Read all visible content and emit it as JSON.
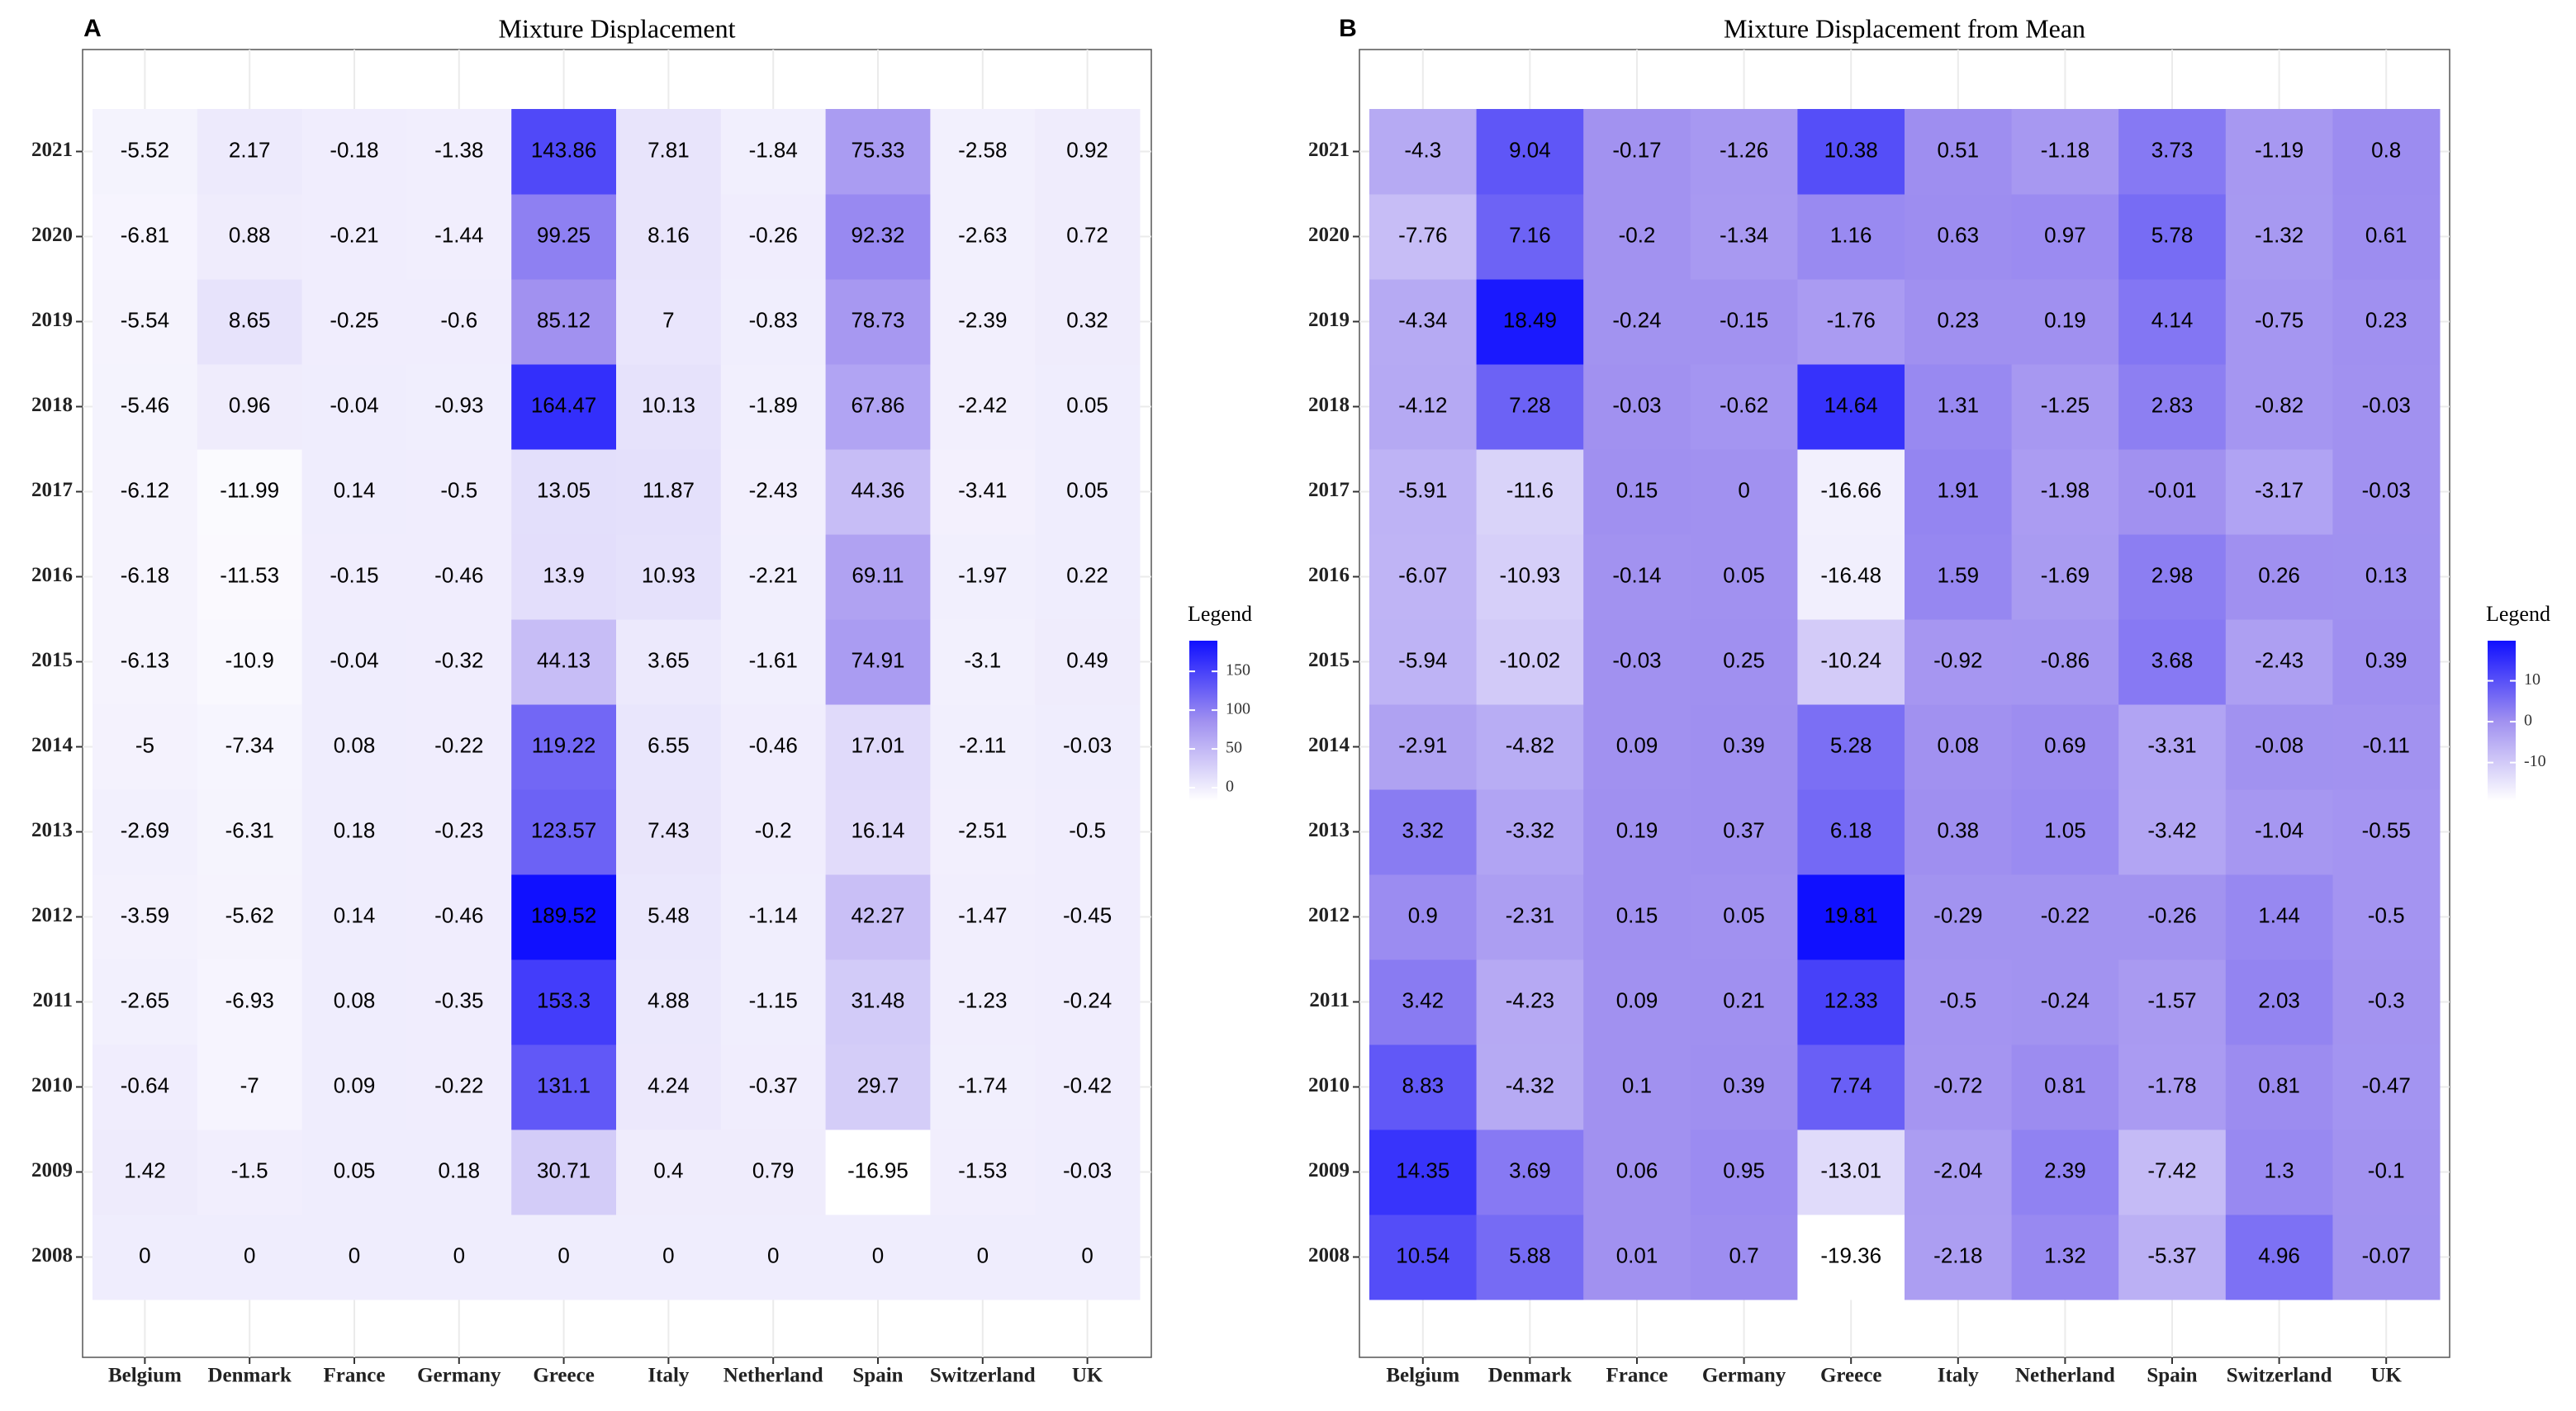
{
  "chart_data": [
    {
      "type": "heatmap",
      "panel_label": "A",
      "title": "Mixture Displacement",
      "x_categories": [
        "Belgium",
        "Denmark",
        "France",
        "Germany",
        "Greece",
        "Italy",
        "Netherland",
        "Spain",
        "Switzerland",
        "UK"
      ],
      "y_categories": [
        "2008",
        "2009",
        "2010",
        "2011",
        "2012",
        "2013",
        "2014",
        "2015",
        "2016",
        "2017",
        "2018",
        "2019",
        "2020",
        "2021"
      ],
      "values": [
        [
          0,
          0,
          0,
          0,
          0,
          0,
          0,
          0,
          0,
          0
        ],
        [
          1.42,
          -1.5,
          0.05,
          0.18,
          30.71,
          0.4,
          0.79,
          -16.95,
          -1.53,
          -0.03
        ],
        [
          -0.64,
          -7,
          0.09,
          -0.22,
          131.1,
          4.24,
          -0.37,
          29.7,
          -1.74,
          -0.42
        ],
        [
          -2.65,
          -6.93,
          0.08,
          -0.35,
          153.3,
          4.88,
          -1.15,
          31.48,
          -1.23,
          -0.24
        ],
        [
          -3.59,
          -5.62,
          0.14,
          -0.46,
          189.52,
          5.48,
          -1.14,
          42.27,
          -1.47,
          -0.45
        ],
        [
          -2.69,
          -6.31,
          0.18,
          -0.23,
          123.57,
          7.43,
          -0.2,
          16.14,
          -2.51,
          -0.5
        ],
        [
          -5,
          -7.34,
          0.08,
          -0.22,
          119.22,
          6.55,
          -0.46,
          17.01,
          -2.11,
          -0.03
        ],
        [
          -6.13,
          -10.9,
          -0.04,
          -0.32,
          44.13,
          3.65,
          -1.61,
          74.91,
          -3.1,
          0.49
        ],
        [
          -6.18,
          -11.53,
          -0.15,
          -0.46,
          13.9,
          10.93,
          -2.21,
          69.11,
          -1.97,
          0.22
        ],
        [
          -6.12,
          -11.99,
          0.14,
          -0.5,
          13.05,
          11.87,
          -2.43,
          44.36,
          -3.41,
          0.05
        ],
        [
          -5.46,
          0.96,
          -0.04,
          -0.93,
          164.47,
          10.13,
          -1.89,
          67.86,
          -2.42,
          0.05
        ],
        [
          -5.54,
          8.65,
          -0.25,
          -0.6,
          85.12,
          7,
          -0.83,
          78.73,
          -2.39,
          0.32
        ],
        [
          -6.81,
          0.88,
          -0.21,
          -1.44,
          99.25,
          8.16,
          -0.26,
          92.32,
          -2.63,
          0.72
        ],
        [
          -5.52,
          2.17,
          -0.18,
          -1.38,
          143.86,
          7.81,
          -1.84,
          75.33,
          -2.58,
          0.92
        ]
      ],
      "legend_title": "Legend",
      "clim": [
        -16.95,
        189.52
      ],
      "cticks": [
        0,
        50,
        100,
        150
      ],
      "colors": [
        "#ffffff",
        "#a090f0",
        "#1010ff"
      ]
    },
    {
      "type": "heatmap",
      "panel_label": "B",
      "title": "Mixture Displacement from Mean",
      "x_categories": [
        "Belgium",
        "Denmark",
        "France",
        "Germany",
        "Greece",
        "Italy",
        "Netherland",
        "Spain",
        "Switzerland",
        "UK"
      ],
      "y_categories": [
        "2008",
        "2009",
        "2010",
        "2011",
        "2012",
        "2013",
        "2014",
        "2015",
        "2016",
        "2017",
        "2018",
        "2019",
        "2020",
        "2021"
      ],
      "values": [
        [
          10.54,
          5.88,
          0.01,
          0.7,
          -19.36,
          -2.18,
          1.32,
          -5.37,
          4.96,
          -0.07
        ],
        [
          14.35,
          3.69,
          0.06,
          0.95,
          -13.01,
          -2.04,
          2.39,
          -7.42,
          1.3,
          -0.1
        ],
        [
          8.83,
          -4.32,
          0.1,
          0.39,
          7.74,
          -0.72,
          0.81,
          -1.78,
          0.81,
          -0.47
        ],
        [
          3.42,
          -4.23,
          0.09,
          0.21,
          12.33,
          -0.5,
          -0.24,
          -1.57,
          2.03,
          -0.3
        ],
        [
          0.9,
          -2.31,
          0.15,
          0.05,
          19.81,
          -0.29,
          -0.22,
          -0.26,
          1.44,
          -0.5
        ],
        [
          3.32,
          -3.32,
          0.19,
          0.37,
          6.18,
          0.38,
          1.05,
          -3.42,
          -1.04,
          -0.55
        ],
        [
          -2.91,
          -4.82,
          0.09,
          0.39,
          5.28,
          0.08,
          0.69,
          -3.31,
          -0.08,
          -0.11
        ],
        [
          -5.94,
          -10.02,
          -0.03,
          0.25,
          -10.24,
          -0.92,
          -0.86,
          3.68,
          -2.43,
          0.39
        ],
        [
          -6.07,
          -10.93,
          -0.14,
          0.05,
          -16.48,
          1.59,
          -1.69,
          2.98,
          0.26,
          0.13
        ],
        [
          -5.91,
          -11.6,
          0.15,
          0,
          -16.66,
          1.91,
          -1.98,
          -0.01,
          -3.17,
          -0.03
        ],
        [
          -4.12,
          7.28,
          -0.03,
          -0.62,
          14.64,
          1.31,
          -1.25,
          2.83,
          -0.82,
          -0.03
        ],
        [
          -4.34,
          18.49,
          -0.24,
          -0.15,
          -1.76,
          0.23,
          0.19,
          4.14,
          -0.75,
          0.23
        ],
        [
          -7.76,
          7.16,
          -0.2,
          -1.34,
          1.16,
          0.63,
          0.97,
          5.78,
          -1.32,
          0.61
        ],
        [
          -4.3,
          9.04,
          -0.17,
          -1.26,
          10.38,
          0.51,
          -1.18,
          3.73,
          -1.19,
          0.8
        ]
      ],
      "legend_title": "Legend",
      "clim": [
        -19.36,
        19.81
      ],
      "cticks": [
        -10,
        0,
        10
      ],
      "colors": [
        "#ffffff",
        "#a090f0",
        "#1010ff"
      ]
    }
  ]
}
